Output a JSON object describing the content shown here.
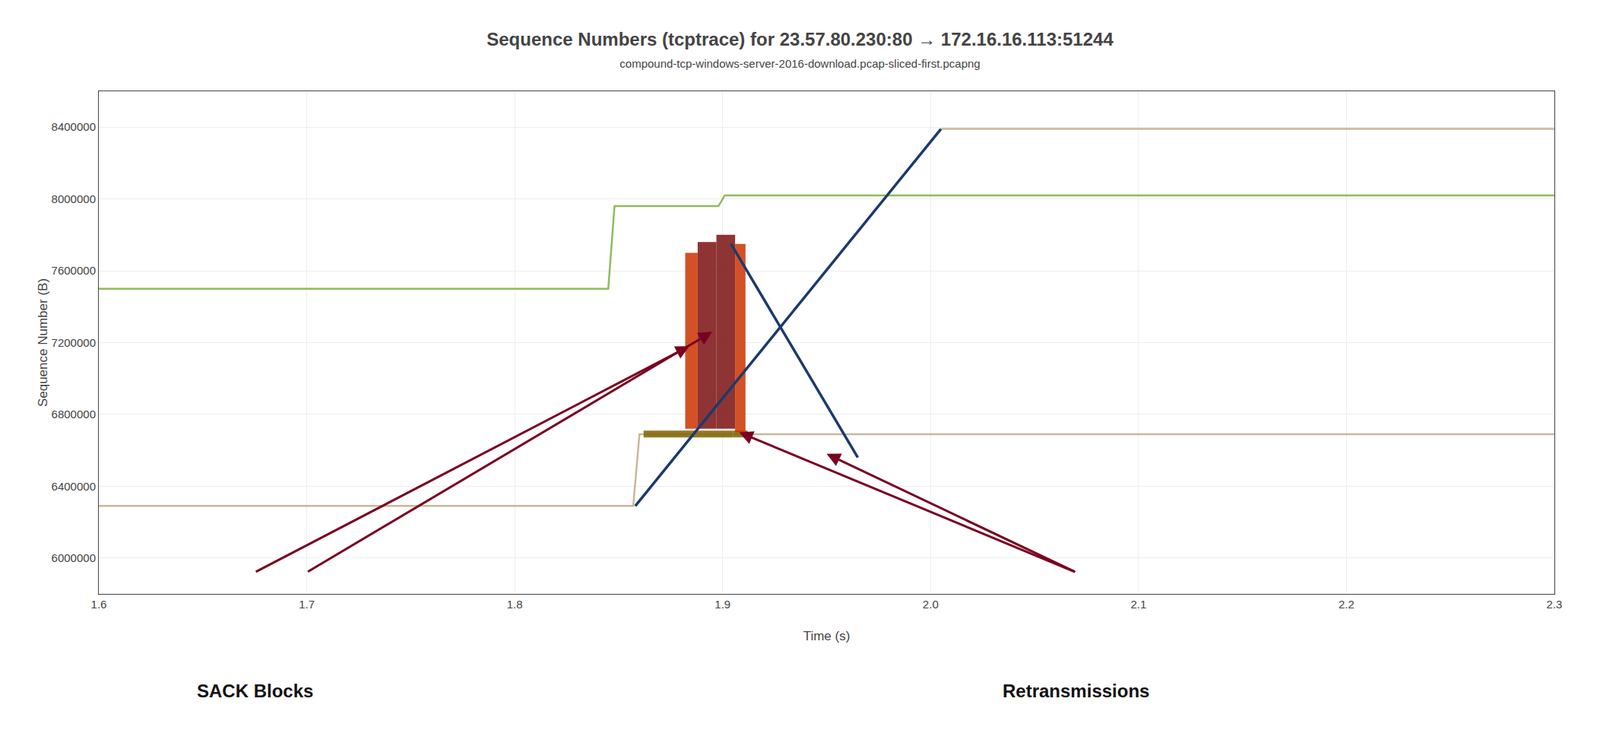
{
  "chart_data": {
    "type": "line",
    "title": "Sequence Numbers (tcptrace) for 23.57.80.230:80 → 172.16.16.113:51244",
    "subtitle": "compound-tcp-windows-server-2016-download.pcap-sliced-first.pcapng",
    "xlabel": "Time (s)",
    "ylabel": "Sequence Number (B)",
    "xlim": [
      1.6,
      2.3
    ],
    "ylim": [
      5800000,
      8600000
    ],
    "xticks": [
      1.6,
      1.7,
      1.8,
      1.9,
      {
        "value": 2.0,
        "label": "2.0"
      },
      2.1,
      2.2,
      2.3
    ],
    "yticks": [
      6000000,
      6400000,
      6800000,
      7200000,
      7600000,
      8000000,
      8400000
    ],
    "grid": true,
    "series": [
      {
        "color": "#c8b89a",
        "x": [
          1.6,
          1.857,
          1.86,
          2.3
        ],
        "values": [
          6290000,
          6290000,
          6690000,
          6690000
        ]
      },
      {
        "color": "#c8b89a",
        "x": [
          2.005,
          2.3
        ],
        "values": [
          8390000,
          8390000
        ]
      },
      {
        "color": "#8fbc5a",
        "x": [
          1.6,
          1.845,
          1.848,
          1.898,
          1.901,
          2.3
        ],
        "values": [
          7500000,
          7500000,
          7960000,
          7960000,
          8020000,
          8020000
        ]
      }
    ],
    "rects": [
      {
        "x0": 1.862,
        "x1": 1.905,
        "y0": 6672000,
        "y1": 6710000,
        "color": "#806000"
      },
      {
        "x0": 1.905,
        "x1": 1.912,
        "y0": 6672000,
        "y1": 6710000,
        "color": "#806000"
      },
      {
        "x0": 1.882,
        "x1": 1.888,
        "y0": 6720000,
        "y1": 7700000,
        "color": "#cc3300"
      },
      {
        "x0": 1.888,
        "x1": 1.897,
        "y0": 6720000,
        "y1": 7760000,
        "color": "#7a1010"
      },
      {
        "x0": 1.897,
        "x1": 1.906,
        "y0": 6720000,
        "y1": 7800000,
        "color": "#7a1010"
      },
      {
        "x0": 1.906,
        "x1": 1.911,
        "y0": 6700000,
        "y1": 7750000,
        "color": "#cc3300"
      }
    ],
    "top_series": [
      {
        "color": "#1a3a6e",
        "x": [
          1.858,
          2.005
        ],
        "values": [
          6290000,
          8390000
        ]
      },
      {
        "color": "#1a3a6e",
        "x": [
          1.904,
          1.965
        ],
        "values": [
          7750000,
          6560000
        ]
      }
    ],
    "annotations": [
      {
        "text": "SACK Blocks",
        "color": "#7a0020",
        "arrows": [
          {
            "tail_x": 1.675,
            "tail_y": 5920000,
            "head_x": 1.884,
            "head_y": 7180000
          },
          {
            "tail_x": 1.7,
            "tail_y": 5920000,
            "head_x": 1.895,
            "head_y": 7260000
          }
        ]
      },
      {
        "text": "Retransmissions",
        "color": "#7a0020",
        "arrows": [
          {
            "tail_x": 2.07,
            "tail_y": 5920000,
            "head_x": 1.95,
            "head_y": 6580000
          },
          {
            "tail_x": 2.07,
            "tail_y": 5920000,
            "head_x": 1.908,
            "head_y": 6700000
          }
        ]
      }
    ]
  }
}
